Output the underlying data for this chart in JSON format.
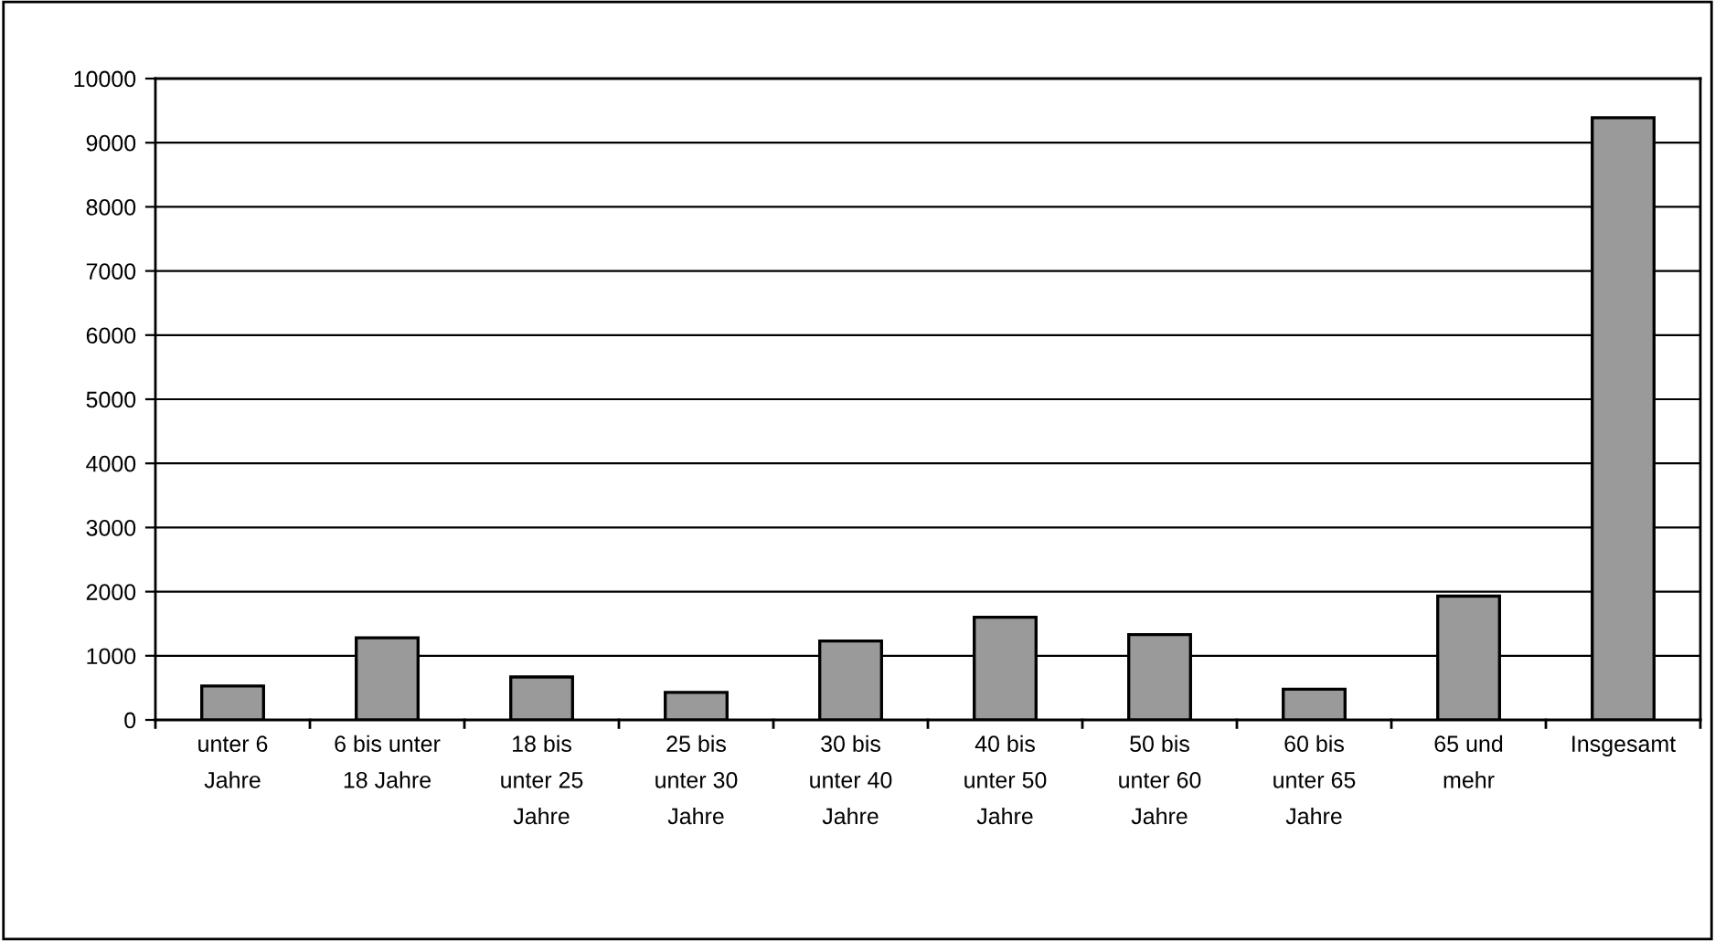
{
  "chart_data": {
    "type": "bar",
    "categories": [
      "unter 6\nJahre",
      "6 bis unter\n18 Jahre",
      "18 bis\nunter 25\nJahre",
      "25 bis\nunter 30\nJahre",
      "30 bis\nunter 40\nJahre",
      "40 bis\nunter 50\nJahre",
      "50 bis\nunter 60\nJahre",
      "60 bis\nunter 65\nJahre",
      "65 und\nmehr",
      "Insgesamt"
    ],
    "values": [
      530,
      1280,
      670,
      430,
      1230,
      1600,
      1330,
      480,
      1930,
      9390
    ],
    "color": "#9a9a9a",
    "ylim": [
      0,
      10000
    ],
    "yticks": [
      0,
      1000,
      2000,
      3000,
      4000,
      5000,
      6000,
      7000,
      8000,
      9000,
      10000
    ],
    "grid": "y",
    "legend": false
  }
}
